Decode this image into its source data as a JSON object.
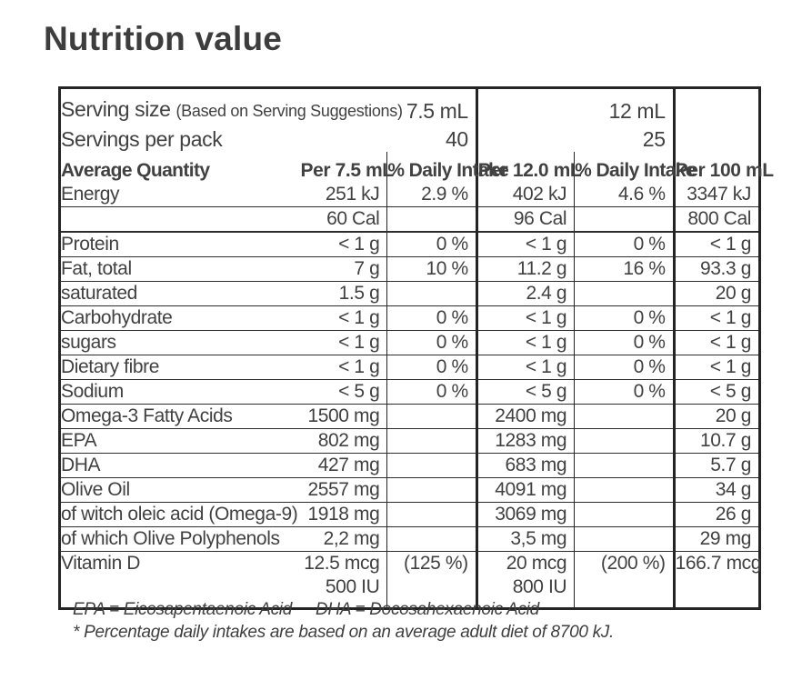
{
  "page": {
    "title": "Nutrition value"
  },
  "table": {
    "serving": [
      {
        "label": "Serving size",
        "note": "(Based on Serving Suggestions)",
        "pack1": "7.5 mL",
        "pack2": "12 mL"
      },
      {
        "label": "Servings per pack",
        "note": "",
        "pack1": "40",
        "pack2": "25"
      }
    ],
    "header": {
      "label": "Average Quantity",
      "col1": "Per 7.5 mL",
      "col2": "% Daily Intake",
      "col3": "Per 12.0 mL",
      "col4": "% Daily Intake",
      "col5": "Per 100 mL"
    },
    "rows": [
      {
        "label": "Energy",
        "indent": false,
        "v1": "251 kJ",
        "d1": "2.9 %",
        "v2": "402 kJ",
        "d2": "4.6 %",
        "v3": "3347 kJ",
        "rule": "normal"
      },
      {
        "label": "",
        "indent": false,
        "v1": "60 Cal",
        "d1": "",
        "v2": "96 Cal",
        "d2": "",
        "v3": "800 Cal",
        "rule": "thick"
      },
      {
        "label": "Protein",
        "indent": false,
        "v1": "< 1 g",
        "d1": "0 %",
        "v2": "< 1 g",
        "d2": "0 %",
        "v3": "< 1 g",
        "rule": "normal"
      },
      {
        "label": "Fat, total",
        "indent": false,
        "v1": "7 g",
        "d1": "10 %",
        "v2": "11.2 g",
        "d2": "16 %",
        "v3": "93.3 g",
        "rule": "normal"
      },
      {
        "label": "saturated",
        "indent": true,
        "v1": "1.5 g",
        "d1": "",
        "v2": "2.4 g",
        "d2": "",
        "v3": "20 g",
        "rule": "normal"
      },
      {
        "label": "Carbohydrate",
        "indent": false,
        "v1": "< 1 g",
        "d1": "0 %",
        "v2": "< 1 g",
        "d2": "0 %",
        "v3": "< 1 g",
        "rule": "normal"
      },
      {
        "label": "sugars",
        "indent": true,
        "v1": "< 1 g",
        "d1": "0 %",
        "v2": "< 1 g",
        "d2": "0 %",
        "v3": "< 1 g",
        "rule": "normal"
      },
      {
        "label": "Dietary fibre",
        "indent": false,
        "v1": "< 1 g",
        "d1": "0 %",
        "v2": "< 1 g",
        "d2": "0 %",
        "v3": "< 1 g",
        "rule": "normal"
      },
      {
        "label": "Sodium",
        "indent": false,
        "v1": "< 5 g",
        "d1": "0 %",
        "v2": "< 5 g",
        "d2": "0 %",
        "v3": "< 5 g",
        "rule": "normal"
      },
      {
        "label": "Omega-3 Fatty Acids",
        "indent": false,
        "v1": "1500 mg",
        "d1": "",
        "v2": "2400 mg",
        "d2": "",
        "v3": "20 g",
        "rule": "normal"
      },
      {
        "label": "EPA",
        "indent": true,
        "v1": "802 mg",
        "d1": "",
        "v2": "1283 mg",
        "d2": "",
        "v3": "10.7 g",
        "rule": "normal"
      },
      {
        "label": "DHA",
        "indent": true,
        "v1": "427 mg",
        "d1": "",
        "v2": "683 mg",
        "d2": "",
        "v3": "5.7 g",
        "rule": "normal"
      },
      {
        "label": "Olive Oil",
        "indent": false,
        "v1": "2557 mg",
        "d1": "",
        "v2": "4091 mg",
        "d2": "",
        "v3": "34 g",
        "rule": "normal"
      },
      {
        "label": "of witch oleic acid (Omega-9)",
        "indent": true,
        "v1": "1918 mg",
        "d1": "",
        "v2": "3069 mg",
        "d2": "",
        "v3": "26 g",
        "rule": "normal"
      },
      {
        "label": "of which Olive Polyphenols",
        "indent": true,
        "v1": "2,2 mg",
        "d1": "",
        "v2": "3,5 mg",
        "d2": "",
        "v3": "29 mg",
        "rule": "normal"
      },
      {
        "label": "Vitamin D",
        "indent": false,
        "v1": "12.5 mcg",
        "d1": "(125 %)",
        "v2": "20 mcg",
        "d2": "(200 %)",
        "v3": "166.7 mcg",
        "rule": "none"
      },
      {
        "label": "",
        "indent": false,
        "v1": "500 IU",
        "d1": "",
        "v2": "800 IU",
        "d2": "",
        "v3": "",
        "rule": "none"
      }
    ]
  },
  "footnotes": {
    "abbrev_epa": "EPA = Eicosapentaenoic Acid",
    "abbrev_dha": "DHA = Docosahexaenoic Acid",
    "daily_intake_note": "* Percentage daily intakes are based on an average adult diet of 8700 kJ."
  }
}
